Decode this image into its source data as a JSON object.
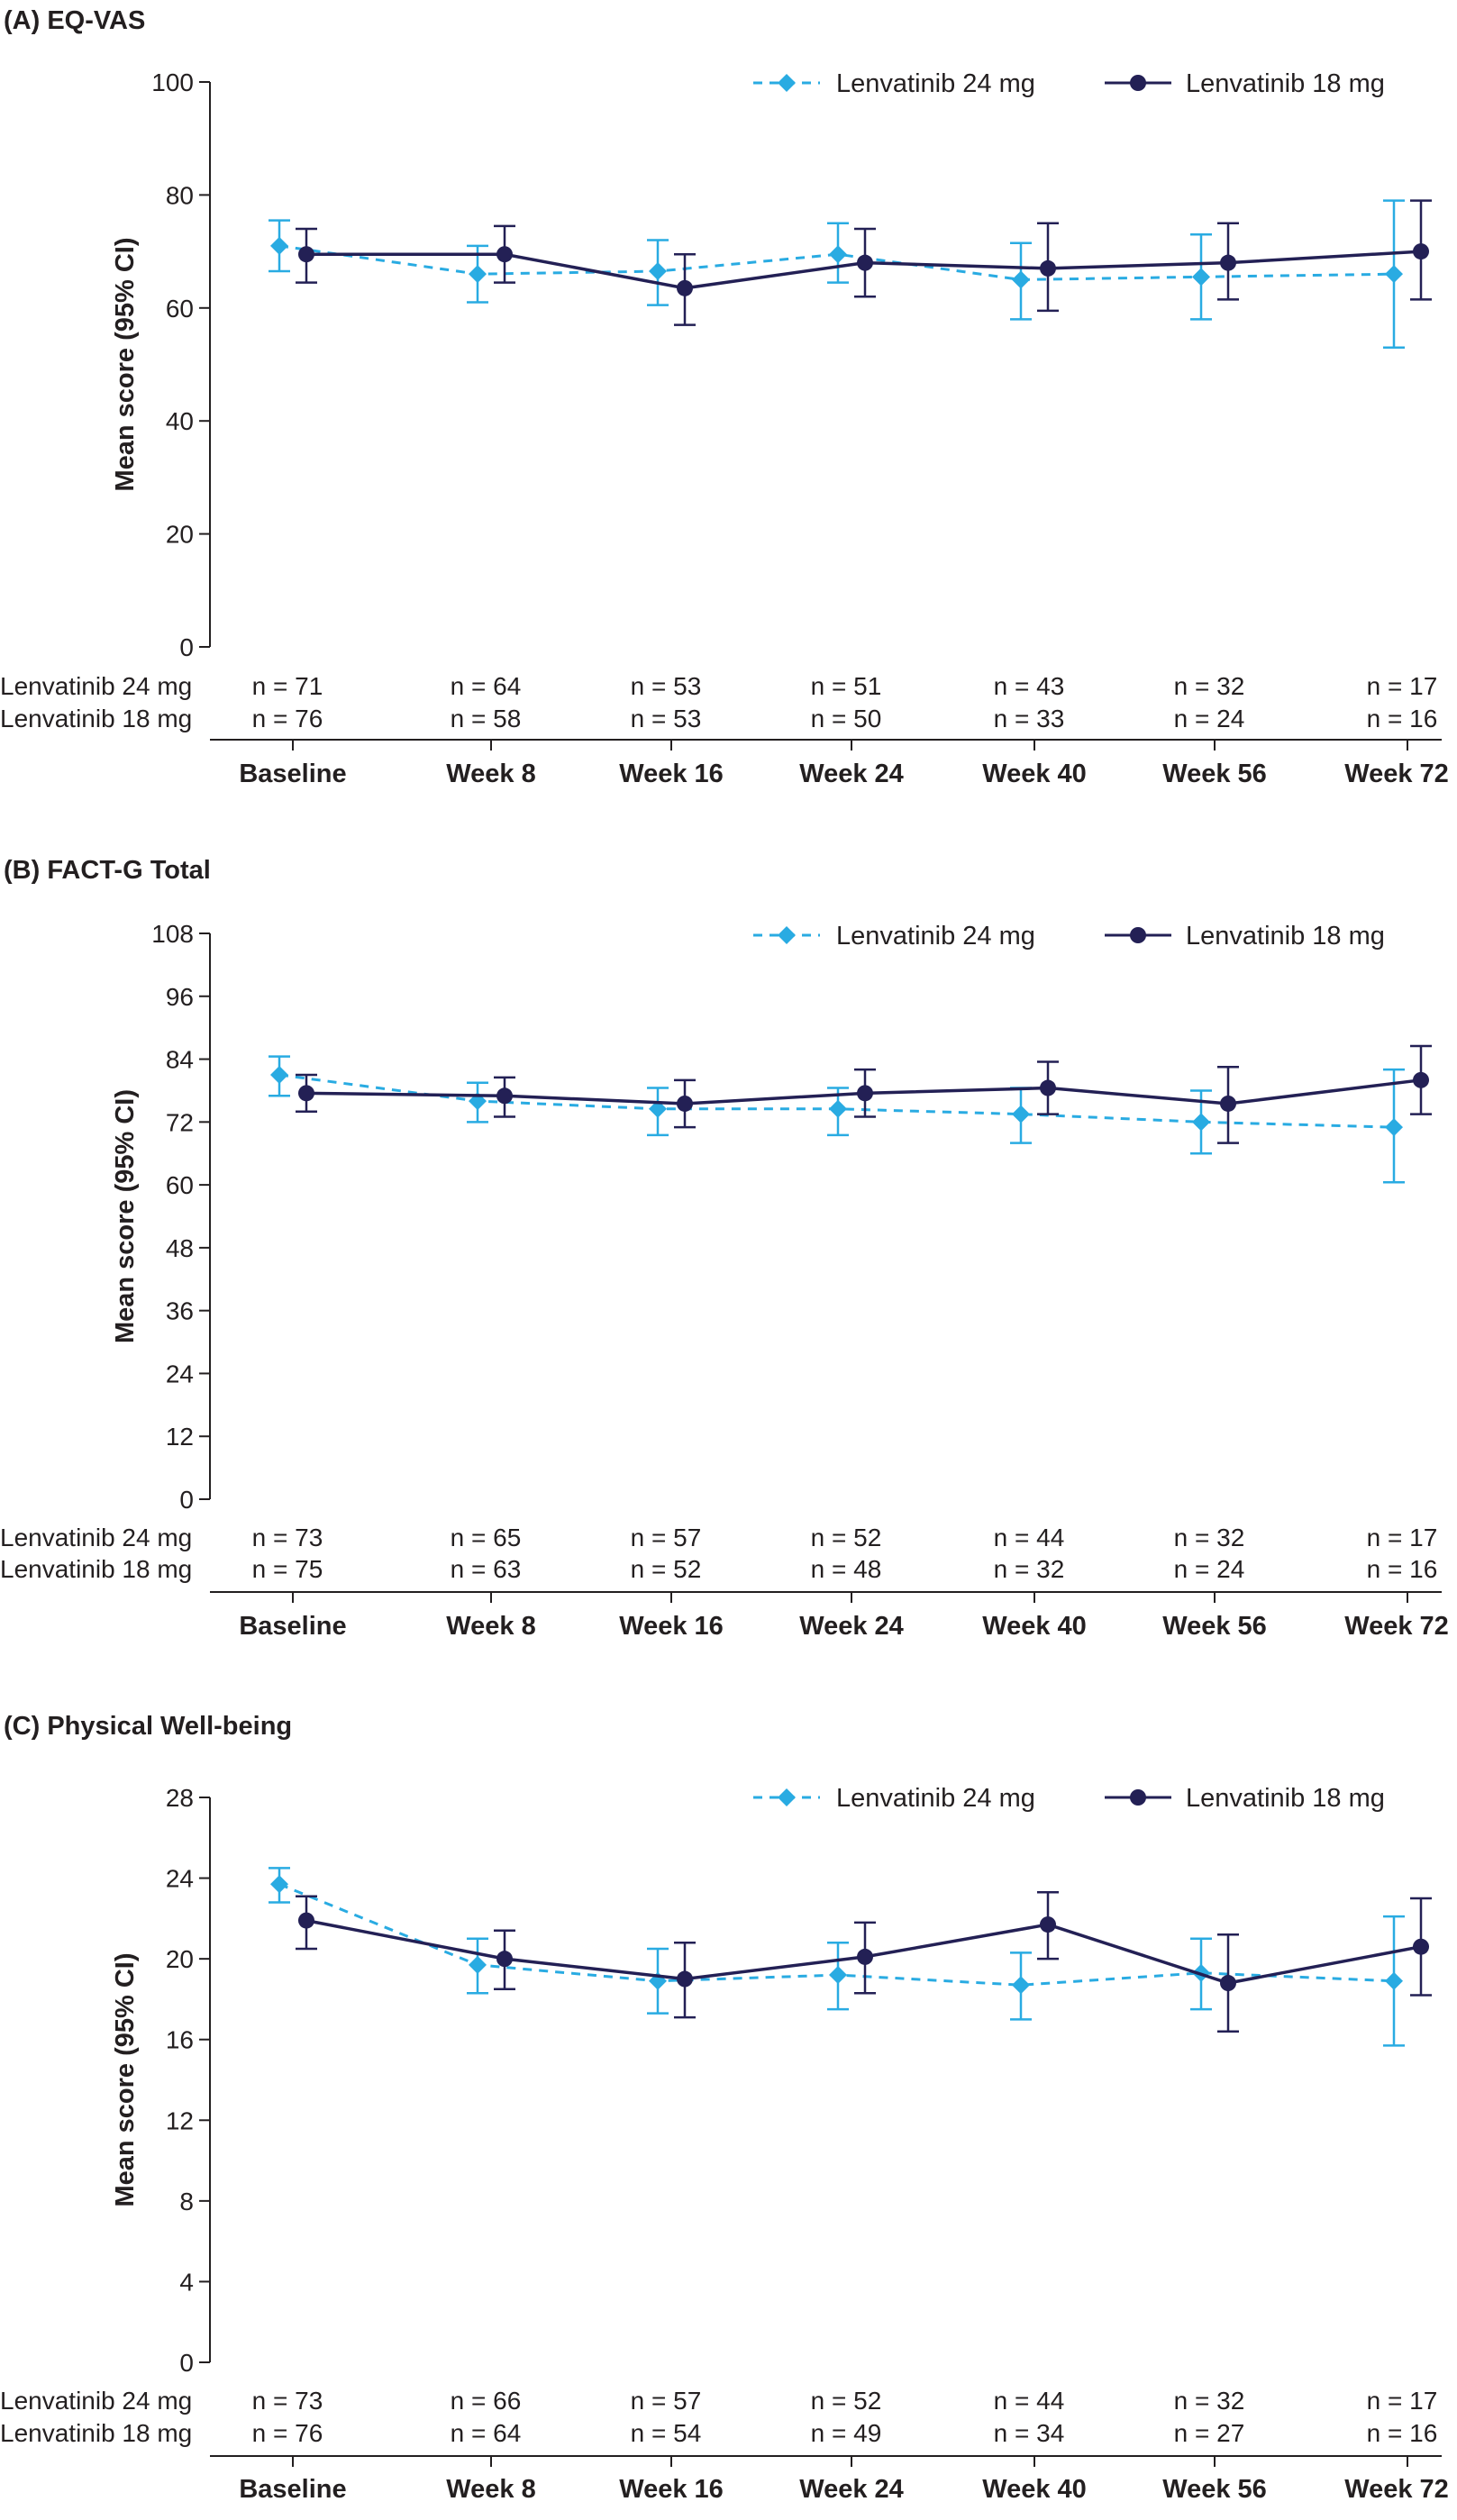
{
  "legend": {
    "s24": "Lenvatinib 24 mg",
    "s18": "Lenvatinib 18 mg"
  },
  "colors": {
    "s24": "#29abe2",
    "s18": "#232055",
    "axis": "#231f20"
  },
  "chart_data": [
    {
      "type": "line",
      "title": "(A) EQ-VAS",
      "ylabel": "Mean score (95% CI)",
      "xlabel": "",
      "ylim": [
        0,
        100
      ],
      "yticks": [
        0,
        20,
        40,
        60,
        80,
        100
      ],
      "grid": false,
      "legend_position": "top-right",
      "categories": [
        "Baseline",
        "Week 8",
        "Week 16",
        "Week 24",
        "Week 40",
        "Week 56",
        "Week 72"
      ],
      "series": [
        {
          "name": "Lenvatinib 24 mg",
          "style": "dashed-diamond",
          "values": [
            71,
            66,
            66.5,
            69.5,
            65,
            65.5,
            66
          ],
          "ci_low": [
            66.5,
            61,
            60.5,
            64.5,
            58,
            58,
            53
          ],
          "ci_high": [
            75.5,
            71,
            72,
            75,
            71.5,
            73,
            79
          ],
          "n": [
            "n = 71",
            "n = 64",
            "n = 53",
            "n = 51",
            "n = 43",
            "n = 32",
            "n = 17"
          ]
        },
        {
          "name": "Lenvatinib 18 mg",
          "style": "solid-circle",
          "values": [
            69.5,
            69.5,
            63.5,
            68,
            67,
            68,
            70
          ],
          "ci_low": [
            64.5,
            64.5,
            57,
            62,
            59.5,
            61.5,
            61.5
          ],
          "ci_high": [
            74,
            74.5,
            69.5,
            74,
            75,
            75,
            79
          ]
        }
      ],
      "n_rows": [
        {
          "label": "Lenvatinib 24 mg",
          "n": [
            "n = 71",
            "n = 64",
            "n = 53",
            "n = 51",
            "n = 43",
            "n = 32",
            "n = 17"
          ]
        },
        {
          "label": "Lenvatinib 18 mg",
          "n": [
            "n = 76",
            "n = 58",
            "n = 53",
            "n = 50",
            "n = 33",
            "n = 24",
            "n = 16"
          ]
        }
      ]
    },
    {
      "type": "line",
      "title": "(B) FACT-G Total",
      "ylabel": "Mean score (95% CI)",
      "xlabel": "",
      "ylim": [
        0,
        108
      ],
      "yticks": [
        0,
        12,
        24,
        36,
        48,
        60,
        72,
        84,
        96,
        108
      ],
      "grid": false,
      "legend_position": "top-right",
      "categories": [
        "Baseline",
        "Week 8",
        "Week 16",
        "Week 24",
        "Week 40",
        "Week 56",
        "Week 72"
      ],
      "series": [
        {
          "name": "Lenvatinib 24 mg",
          "style": "dashed-diamond",
          "values": [
            81,
            76,
            74.5,
            74.5,
            73.5,
            72,
            71
          ],
          "ci_low": [
            77,
            72,
            69.5,
            69.5,
            68,
            66,
            60.5
          ],
          "ci_high": [
            84.5,
            79.5,
            78.5,
            78.5,
            78.5,
            78,
            82
          ]
        },
        {
          "name": "Lenvatinib 18 mg",
          "style": "solid-circle",
          "values": [
            77.5,
            77,
            75.5,
            77.5,
            78.5,
            75.5,
            80
          ],
          "ci_low": [
            74,
            73,
            71,
            73,
            73.5,
            68,
            73.5
          ],
          "ci_high": [
            81,
            80.5,
            80,
            82,
            83.5,
            82.5,
            86.5
          ]
        }
      ],
      "n_rows": [
        {
          "label": "Lenvatinib 24 mg",
          "n": [
            "n = 73",
            "n = 65",
            "n = 57",
            "n = 52",
            "n = 44",
            "n = 32",
            "n = 17"
          ]
        },
        {
          "label": "Lenvatinib 18 mg",
          "n": [
            "n = 75",
            "n = 63",
            "n = 52",
            "n = 48",
            "n = 32",
            "n = 24",
            "n = 16"
          ]
        }
      ]
    },
    {
      "type": "line",
      "title": "(C) Physical Well-being",
      "ylabel": "Mean score (95% CI)",
      "xlabel": "",
      "ylim": [
        0,
        28
      ],
      "yticks": [
        0,
        4,
        8,
        12,
        16,
        20,
        24,
        28
      ],
      "grid": false,
      "legend_position": "top-right",
      "categories": [
        "Baseline",
        "Week 8",
        "Week 16",
        "Week 24",
        "Week 40",
        "Week 56",
        "Week 72"
      ],
      "series": [
        {
          "name": "Lenvatinib 24 mg",
          "style": "dashed-diamond",
          "values": [
            23.7,
            19.7,
            18.9,
            19.2,
            18.7,
            19.3,
            18.9
          ],
          "ci_low": [
            22.8,
            18.3,
            17.3,
            17.5,
            17.0,
            17.5,
            15.7
          ],
          "ci_high": [
            24.5,
            21.0,
            20.5,
            20.8,
            20.3,
            21.0,
            22.1
          ]
        },
        {
          "name": "Lenvatinib 18 mg",
          "style": "solid-circle",
          "values": [
            21.9,
            20.0,
            19.0,
            20.1,
            21.7,
            18.8,
            20.6
          ],
          "ci_low": [
            20.5,
            18.5,
            17.1,
            18.3,
            20.0,
            16.4,
            18.2
          ],
          "ci_high": [
            23.1,
            21.4,
            20.8,
            21.8,
            23.3,
            21.2,
            23.0
          ]
        }
      ],
      "n_rows": [
        {
          "label": "Lenvatinib 24 mg",
          "n": [
            "n = 73",
            "n = 66",
            "n = 57",
            "n = 52",
            "n = 44",
            "n = 32",
            "n = 17"
          ]
        },
        {
          "label": "Lenvatinib 18 mg",
          "n": [
            "n = 76",
            "n = 64",
            "n = 54",
            "n = 49",
            "n = 34",
            "n = 27",
            "n = 16"
          ]
        }
      ]
    }
  ]
}
